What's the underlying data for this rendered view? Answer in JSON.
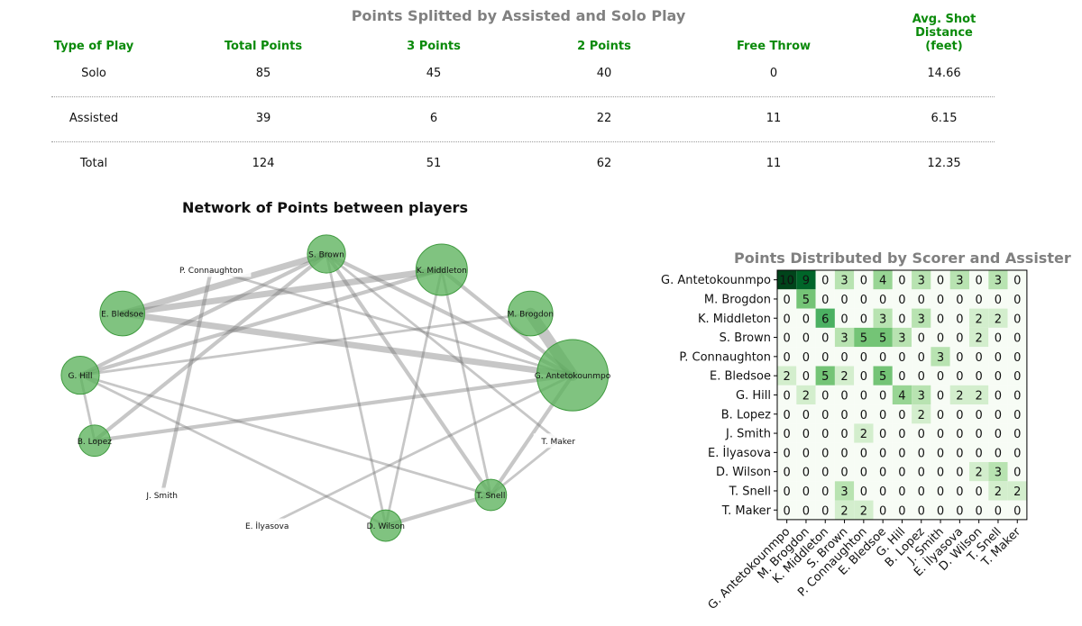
{
  "table": {
    "title": "Points Splitted by Assisted and Solo Play",
    "headers": [
      {
        "lines": [
          "Type of Play"
        ]
      },
      {
        "lines": [
          "Total Points"
        ]
      },
      {
        "lines": [
          "3 Points"
        ]
      },
      {
        "lines": [
          "2 Points"
        ]
      },
      {
        "lines": [
          "Free Throw"
        ]
      },
      {
        "lines": [
          "Avg. Shot",
          "Distance",
          "(feet)"
        ]
      }
    ],
    "rows": [
      [
        "Solo",
        "85",
        "45",
        "40",
        "0",
        "14.66"
      ],
      [
        "Assisted",
        "39",
        "6",
        "22",
        "11",
        "6.15"
      ],
      [
        "Total",
        "124",
        "51",
        "62",
        "11",
        "12.35"
      ]
    ],
    "header_color": "#0a8a0a"
  },
  "network": {
    "title": "Network of Points between players",
    "node_color": "#5cb25c",
    "nodes": [
      {
        "id": "S. Brown",
        "size": 3
      },
      {
        "id": "K. Middleton",
        "size": 5
      },
      {
        "id": "M. Brogdon",
        "size": 4
      },
      {
        "id": "G. Antetokounmpo",
        "size": 8
      },
      {
        "id": "T. Maker",
        "size": 0
      },
      {
        "id": "T. Snell",
        "size": 2
      },
      {
        "id": "D. Wilson",
        "size": 2
      },
      {
        "id": "E. İlyasova",
        "size": 0
      },
      {
        "id": "J. Smith",
        "size": 0
      },
      {
        "id": "B. Lopez",
        "size": 2
      },
      {
        "id": "G. Hill",
        "size": 3
      },
      {
        "id": "E. Bledsoe",
        "size": 4
      },
      {
        "id": "P. Connaughton",
        "size": 0
      }
    ],
    "edges": [
      {
        "a": "E. Bledsoe",
        "b": "S. Brown",
        "w": 5
      },
      {
        "a": "E. Bledsoe",
        "b": "K. Middleton",
        "w": 5
      },
      {
        "a": "E. Bledsoe",
        "b": "G. Antetokounmpo",
        "w": 5
      },
      {
        "a": "G. Hill",
        "b": "S. Brown",
        "w": 3
      },
      {
        "a": "G. Hill",
        "b": "K. Middleton",
        "w": 3
      },
      {
        "a": "G. Hill",
        "b": "M. Brogdon",
        "w": 2
      },
      {
        "a": "G. Hill",
        "b": "B. Lopez",
        "w": 2
      },
      {
        "a": "G. Hill",
        "b": "D. Wilson",
        "w": 2
      },
      {
        "a": "G. Hill",
        "b": "T. Snell",
        "w": 2
      },
      {
        "a": "B. Lopez",
        "b": "G. Antetokounmpo",
        "w": 3
      },
      {
        "a": "B. Lopez",
        "b": "S. Brown",
        "w": 3
      },
      {
        "a": "P. Connaughton",
        "b": "G. Antetokounmpo",
        "w": 2
      },
      {
        "a": "J. Smith",
        "b": "P. Connaughton",
        "w": 3
      },
      {
        "a": "S. Brown",
        "b": "G. Antetokounmpo",
        "w": 3
      },
      {
        "a": "S. Brown",
        "b": "D. Wilson",
        "w": 2
      },
      {
        "a": "S. Brown",
        "b": "T. Snell",
        "w": 3
      },
      {
        "a": "S. Brown",
        "b": "T. Maker",
        "w": 2
      },
      {
        "a": "K. Middleton",
        "b": "G. Antetokounmpo",
        "w": 3
      },
      {
        "a": "K. Middleton",
        "b": "T. Snell",
        "w": 2
      },
      {
        "a": "K. Middleton",
        "b": "D. Wilson",
        "w": 2
      },
      {
        "a": "M. Brogdon",
        "b": "G. Antetokounmpo",
        "w": 9
      },
      {
        "a": "E. İlyasova",
        "b": "G. Antetokounmpo",
        "w": 2
      },
      {
        "a": "D. Wilson",
        "b": "T. Snell",
        "w": 3
      },
      {
        "a": "T. Snell",
        "b": "G. Antetokounmpo",
        "w": 3
      },
      {
        "a": "T. Snell",
        "b": "T. Maker",
        "w": 2
      }
    ]
  },
  "chart_data": {
    "type": "heatmap",
    "title": "Points Distributed by Scorer and Assister",
    "rows": [
      "G. Antetokounmpo",
      "M. Brogdon",
      "K. Middleton",
      "S. Brown",
      "P. Connaughton",
      "E. Bledsoe",
      "G. Hill",
      "B. Lopez",
      "J. Smith",
      "E. İlyasova",
      "D. Wilson",
      "T. Snell",
      "T. Maker"
    ],
    "columns": [
      "G. Antetokounmpo",
      "M. Brogdon",
      "K. Middleton",
      "S. Brown",
      "P. Connaughton",
      "E. Bledsoe",
      "G. Hill",
      "B. Lopez",
      "J. Smith",
      "E. İlyasova",
      "D. Wilson",
      "T. Snell",
      "T. Maker"
    ],
    "values": [
      [
        10,
        9,
        0,
        3,
        0,
        4,
        0,
        3,
        0,
        3,
        0,
        3,
        0
      ],
      [
        0,
        5,
        0,
        0,
        0,
        0,
        0,
        0,
        0,
        0,
        0,
        0,
        0
      ],
      [
        0,
        0,
        6,
        0,
        0,
        3,
        0,
        3,
        0,
        0,
        2,
        2,
        0
      ],
      [
        0,
        0,
        0,
        3,
        5,
        5,
        3,
        0,
        0,
        0,
        2,
        0,
        0
      ],
      [
        0,
        0,
        0,
        0,
        0,
        0,
        0,
        0,
        3,
        0,
        0,
        0,
        0
      ],
      [
        2,
        0,
        5,
        2,
        0,
        5,
        0,
        0,
        0,
        0,
        0,
        0,
        0
      ],
      [
        0,
        2,
        0,
        0,
        0,
        0,
        4,
        3,
        0,
        2,
        2,
        0,
        0
      ],
      [
        0,
        0,
        0,
        0,
        0,
        0,
        0,
        2,
        0,
        0,
        0,
        0,
        0
      ],
      [
        0,
        0,
        0,
        0,
        2,
        0,
        0,
        0,
        0,
        0,
        0,
        0,
        0
      ],
      [
        0,
        0,
        0,
        0,
        0,
        0,
        0,
        0,
        0,
        0,
        0,
        0,
        0
      ],
      [
        0,
        0,
        0,
        0,
        0,
        0,
        0,
        0,
        0,
        0,
        2,
        3,
        0
      ],
      [
        0,
        0,
        0,
        3,
        0,
        0,
        0,
        0,
        0,
        0,
        0,
        2,
        2
      ],
      [
        0,
        0,
        0,
        2,
        2,
        0,
        0,
        0,
        0,
        0,
        0,
        0,
        0
      ]
    ],
    "colormap": "Greens",
    "vmin": 0,
    "vmax": 10
  }
}
